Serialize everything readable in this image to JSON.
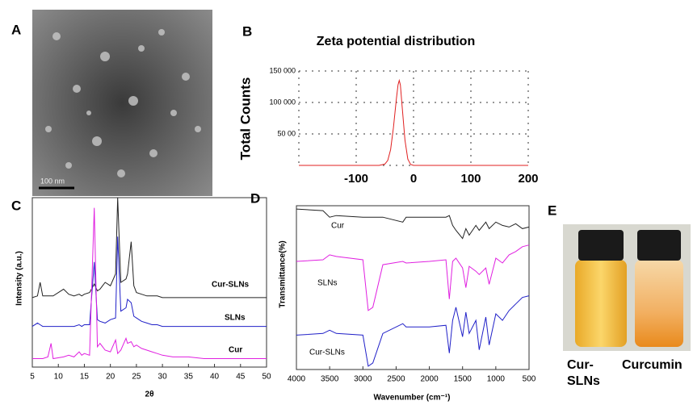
{
  "panels": {
    "A": {
      "label": "A",
      "scale_bar": "100 nm"
    },
    "E": {
      "label": "E",
      "vials": [
        "Cur-SLNs",
        "Curcumin"
      ]
    }
  },
  "chart_data": [
    {
      "type": "line",
      "panel_label": "B",
      "title": "Zeta  potential distribution",
      "y_label": "Total  Counts",
      "xlim": [
        -200,
        200
      ],
      "xticks": [
        -100,
        0,
        100,
        200
      ],
      "ylim": [
        0,
        150000
      ],
      "yticks": [
        {
          "value": 50000,
          "label": "50 00"
        },
        {
          "value": 100000,
          "label": "100 000"
        },
        {
          "value": 150000,
          "label": "150 000"
        }
      ],
      "grid": true,
      "x": [
        -200,
        -60,
        -50,
        -45,
        -40,
        -35,
        -30,
        -27,
        -25,
        -23,
        -20,
        -15,
        -10,
        -5,
        0,
        200
      ],
      "series": [
        {
          "color": "#e02020",
          "values": [
            0,
            0,
            2000,
            8000,
            25000,
            60000,
            105000,
            128000,
            135000,
            128000,
            95000,
            40000,
            10000,
            1500,
            0,
            0
          ]
        }
      ]
    },
    {
      "type": "line",
      "panel_label": "C",
      "x_label": "2θ",
      "y_label": "Intensity (a.u.)",
      "xlim": [
        5,
        50
      ],
      "xticks": [
        5,
        10,
        15,
        20,
        25,
        30,
        35,
        40,
        45,
        50
      ],
      "ylim": [
        0,
        100
      ],
      "x": [
        5,
        6,
        6.5,
        7,
        8,
        8.6,
        9,
        11,
        12,
        13,
        14,
        14.5,
        15,
        16,
        16.9,
        17.5,
        18,
        19,
        20,
        21,
        21.4,
        22,
        23,
        23.3,
        24,
        24.5,
        25,
        26,
        27,
        28,
        29,
        30,
        32,
        35,
        38,
        40,
        43,
        46,
        50
      ],
      "series": [
        {
          "name": "Cur-SLNs",
          "color": "#222222",
          "values": [
            41,
            42,
            50,
            42,
            42,
            42,
            42,
            46,
            43,
            42,
            43,
            42,
            43,
            44,
            49,
            45,
            46,
            50,
            48,
            55,
            100,
            50,
            52,
            55,
            74,
            48,
            44,
            43,
            42,
            42,
            42,
            41,
            41,
            41,
            41,
            41,
            41,
            41,
            41
          ]
        },
        {
          "name": "SLNs",
          "color": "#2020c8",
          "values": [
            24,
            26,
            25,
            24,
            24,
            24,
            24,
            24,
            24,
            24,
            25,
            24,
            25,
            25,
            62,
            28,
            27,
            26,
            28,
            29,
            77,
            33,
            35,
            40,
            38,
            30,
            29,
            27,
            26,
            25,
            25,
            24,
            24,
            24,
            24,
            24,
            24,
            24,
            24
          ]
        },
        {
          "name": "Cur",
          "color": "#e020e0",
          "values": [
            5,
            5,
            5,
            5,
            6,
            14,
            5,
            6,
            7,
            6,
            9,
            7,
            8,
            7,
            94,
            12,
            14,
            10,
            9,
            16,
            8,
            10,
            17,
            14,
            15,
            12,
            13,
            11,
            10,
            9,
            8,
            7,
            6,
            6,
            5,
            5,
            5,
            5,
            5
          ]
        }
      ]
    },
    {
      "type": "line",
      "panel_label": "D",
      "x_label": "Wavenumber (cm⁻¹)",
      "y_label": "Transmittance(%)",
      "xlim": [
        4000,
        500
      ],
      "xticks": [
        4000,
        3500,
        3000,
        2500,
        2000,
        1500,
        1000,
        500
      ],
      "ylim": [
        0,
        100
      ],
      "x": [
        4000,
        3600,
        3500,
        3400,
        3000,
        2920,
        2850,
        2700,
        2400,
        2350,
        2000,
        1750,
        1700,
        1650,
        1600,
        1500,
        1450,
        1400,
        1300,
        1250,
        1150,
        1100,
        1000,
        900,
        800,
        700,
        600,
        500
      ],
      "series": [
        {
          "name": "Cur",
          "color": "#222222",
          "values": [
            98,
            97,
            93,
            94,
            93,
            93,
            93,
            93,
            90,
            93,
            93,
            93,
            94,
            88,
            85,
            80,
            86,
            82,
            88,
            85,
            90,
            86,
            90,
            88,
            87,
            89,
            86,
            87
          ]
        },
        {
          "name": "SLNs",
          "color": "#e020e0",
          "values": [
            66,
            67,
            70,
            69,
            67,
            36,
            38,
            64,
            66,
            65,
            66,
            67,
            43,
            66,
            68,
            62,
            50,
            63,
            60,
            58,
            62,
            52,
            68,
            65,
            70,
            72,
            75,
            76
          ]
        },
        {
          "name": "Cur-SLNs",
          "color": "#2020c8",
          "values": [
            21,
            22,
            24,
            22,
            21,
            2,
            4,
            22,
            28,
            26,
            26,
            27,
            10,
            30,
            38,
            20,
            35,
            22,
            30,
            12,
            32,
            15,
            34,
            30,
            36,
            40,
            44,
            45
          ]
        }
      ]
    }
  ]
}
